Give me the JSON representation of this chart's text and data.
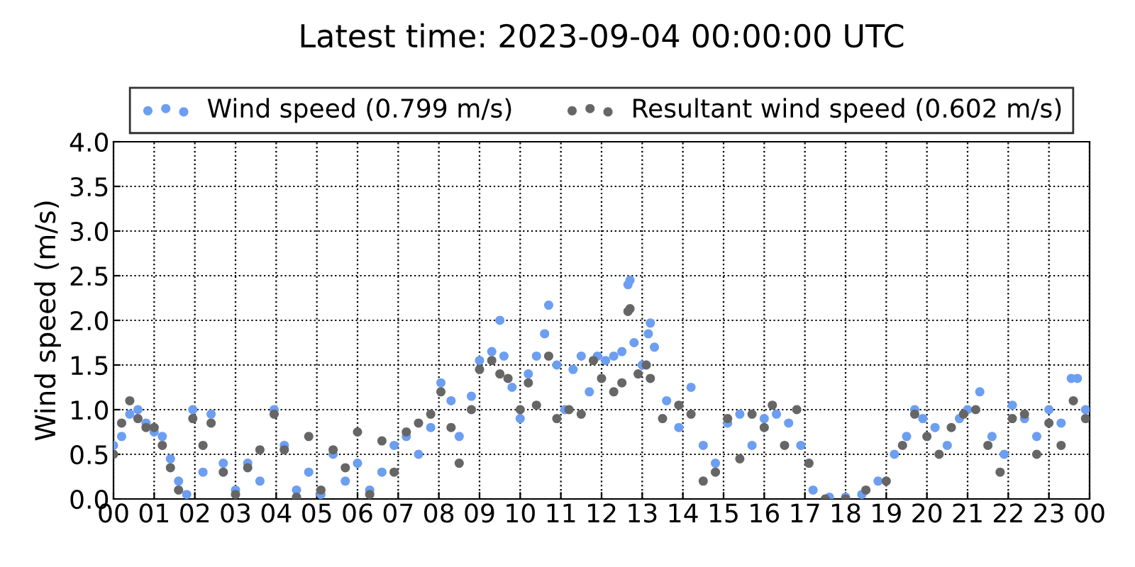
{
  "chart_data": {
    "type": "scatter",
    "title": "Latest time: 2023-09-04 00:00:00 UTC",
    "ylabel": "Wind speed (m/s)",
    "xlim": [
      0,
      24
    ],
    "ylim": [
      0.0,
      4.0
    ],
    "xticks": [
      {
        "value": 0,
        "label": "00"
      },
      {
        "value": 1,
        "label": "01"
      },
      {
        "value": 2,
        "label": "02"
      },
      {
        "value": 3,
        "label": "03"
      },
      {
        "value": 4,
        "label": "04"
      },
      {
        "value": 5,
        "label": "05"
      },
      {
        "value": 6,
        "label": "06"
      },
      {
        "value": 7,
        "label": "07"
      },
      {
        "value": 8,
        "label": "08"
      },
      {
        "value": 9,
        "label": "09"
      },
      {
        "value": 10,
        "label": "10"
      },
      {
        "value": 11,
        "label": "11"
      },
      {
        "value": 12,
        "label": "12"
      },
      {
        "value": 13,
        "label": "13"
      },
      {
        "value": 14,
        "label": "14"
      },
      {
        "value": 15,
        "label": "15"
      },
      {
        "value": 16,
        "label": "16"
      },
      {
        "value": 17,
        "label": "17"
      },
      {
        "value": 18,
        "label": "18"
      },
      {
        "value": 19,
        "label": "19"
      },
      {
        "value": 20,
        "label": "20"
      },
      {
        "value": 21,
        "label": "21"
      },
      {
        "value": 22,
        "label": "22"
      },
      {
        "value": 23,
        "label": "23"
      },
      {
        "value": 24,
        "label": "00"
      }
    ],
    "yticks": [
      {
        "value": 0,
        "label": "0.0"
      },
      0.5,
      {
        "value": 1,
        "label": "1.0"
      },
      1.5,
      {
        "value": 2,
        "label": "2.0"
      },
      2.5,
      {
        "value": 3,
        "label": "3.0"
      },
      3.5,
      {
        "value": 4,
        "label": "4.0"
      }
    ],
    "grid": true,
    "legend": "top",
    "marker": "circle",
    "series": [
      {
        "name": "Wind speed (0.799 m/s)",
        "color": "#6c9ef2",
        "x": [
          0.0,
          0.2,
          0.4,
          0.6,
          0.8,
          1.0,
          1.2,
          1.4,
          1.6,
          1.8,
          1.95,
          2.2,
          2.4,
          2.7,
          3.0,
          3.3,
          3.6,
          3.95,
          4.2,
          4.5,
          4.8,
          5.1,
          5.4,
          5.7,
          6.0,
          6.3,
          6.6,
          6.9,
          7.2,
          7.5,
          7.8,
          8.05,
          8.3,
          8.5,
          8.8,
          9.0,
          9.3,
          9.5,
          9.6,
          9.8,
          10.0,
          10.2,
          10.4,
          10.6,
          10.7,
          10.9,
          11.1,
          11.3,
          11.5,
          11.7,
          11.9,
          12.1,
          12.3,
          12.5,
          12.65,
          12.7,
          12.8,
          13.0,
          13.15,
          13.2,
          13.3,
          13.6,
          13.9,
          14.2,
          14.5,
          14.8,
          15.1,
          15.4,
          15.7,
          16.0,
          16.3,
          16.6,
          16.9,
          17.2,
          17.6,
          18.0,
          18.4,
          18.8,
          19.2,
          19.5,
          19.7,
          19.9,
          20.2,
          20.5,
          20.8,
          21.0,
          21.3,
          21.6,
          21.9,
          22.1,
          22.4,
          22.7,
          23.0,
          23.3,
          23.55,
          23.7,
          23.9
        ],
        "values": [
          0.6,
          0.7,
          0.95,
          1.0,
          0.85,
          0.75,
          0.7,
          0.45,
          0.2,
          0.05,
          1.0,
          0.3,
          0.95,
          0.4,
          0.1,
          0.4,
          0.2,
          1.0,
          0.6,
          0.1,
          0.3,
          0.05,
          0.5,
          0.2,
          0.4,
          0.1,
          0.3,
          0.6,
          0.7,
          0.5,
          0.8,
          1.3,
          1.1,
          0.7,
          1.15,
          1.55,
          1.65,
          2.0,
          1.6,
          1.25,
          0.9,
          1.4,
          1.6,
          1.85,
          2.17,
          1.5,
          1.0,
          1.45,
          1.6,
          1.2,
          1.6,
          1.55,
          1.6,
          1.65,
          2.4,
          2.45,
          1.75,
          1.5,
          1.85,
          1.97,
          1.7,
          1.1,
          0.8,
          1.25,
          0.6,
          0.4,
          0.85,
          0.95,
          0.6,
          0.9,
          0.95,
          0.85,
          0.6,
          0.1,
          0.02,
          0.02,
          0.05,
          0.2,
          0.5,
          0.7,
          1.0,
          0.9,
          0.8,
          0.6,
          0.9,
          1.0,
          1.2,
          0.7,
          0.5,
          1.05,
          0.9,
          0.7,
          1.0,
          0.85,
          1.35,
          1.35,
          1.0
        ]
      },
      {
        "name": "Resultant wind speed (0.602 m/s)",
        "color": "#666666",
        "x": [
          0.0,
          0.2,
          0.4,
          0.6,
          0.8,
          1.0,
          1.2,
          1.4,
          1.6,
          1.95,
          2.2,
          2.4,
          2.7,
          3.0,
          3.3,
          3.6,
          3.95,
          4.2,
          4.5,
          4.8,
          5.1,
          5.4,
          5.7,
          6.0,
          6.3,
          6.6,
          6.9,
          7.2,
          7.5,
          7.8,
          8.05,
          8.3,
          8.5,
          8.8,
          9.0,
          9.3,
          9.5,
          9.7,
          10.0,
          10.2,
          10.4,
          10.7,
          10.9,
          11.2,
          11.5,
          11.8,
          12.0,
          12.3,
          12.5,
          12.65,
          12.7,
          12.9,
          13.1,
          13.2,
          13.5,
          13.9,
          14.2,
          14.5,
          14.8,
          15.1,
          15.4,
          15.7,
          16.0,
          16.2,
          16.5,
          16.8,
          17.1,
          17.5,
          18.0,
          18.5,
          19.0,
          19.4,
          19.7,
          20.0,
          20.3,
          20.6,
          20.9,
          21.2,
          21.5,
          21.8,
          22.1,
          22.4,
          22.7,
          23.0,
          23.3,
          23.6,
          23.9
        ],
        "values": [
          0.5,
          0.85,
          1.1,
          0.9,
          0.8,
          0.8,
          0.6,
          0.35,
          0.1,
          0.9,
          0.6,
          0.85,
          0.3,
          0.05,
          0.35,
          0.55,
          0.95,
          0.55,
          0.02,
          0.7,
          0.1,
          0.55,
          0.35,
          0.75,
          0.05,
          0.65,
          0.3,
          0.75,
          0.85,
          0.95,
          1.2,
          0.8,
          0.4,
          1.0,
          1.45,
          1.55,
          1.4,
          1.35,
          1.0,
          1.3,
          1.05,
          1.6,
          0.9,
          1.0,
          0.95,
          1.55,
          1.35,
          1.2,
          1.3,
          2.1,
          2.13,
          1.4,
          1.5,
          1.35,
          0.9,
          1.05,
          0.95,
          0.2,
          0.3,
          0.9,
          0.45,
          0.95,
          0.8,
          1.05,
          0.6,
          1.0,
          0.4,
          0.0,
          0.0,
          0.1,
          0.2,
          0.6,
          0.95,
          0.7,
          0.5,
          0.8,
          0.95,
          1.0,
          0.6,
          0.3,
          0.9,
          0.95,
          0.5,
          0.85,
          0.6,
          1.1,
          0.9
        ]
      }
    ]
  }
}
